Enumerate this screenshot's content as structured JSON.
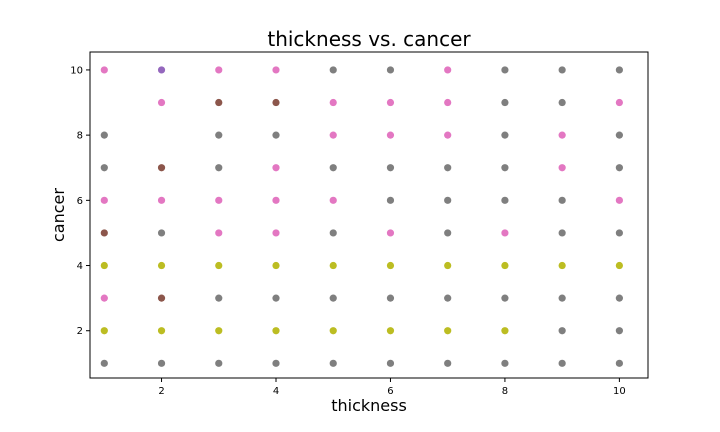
{
  "chart_data": {
    "type": "scatter",
    "title": "thickness vs. cancer",
    "xlabel": "thickness",
    "ylabel": "cancer",
    "xlim": [
      0.75,
      10.5
    ],
    "ylim": [
      0.55,
      10.55
    ],
    "xticks": [
      2,
      4,
      6,
      8,
      10
    ],
    "yticks": [
      2,
      4,
      6,
      8,
      10
    ],
    "grid": false,
    "colors": {
      "gray": "#7f7f7f",
      "olive": "#bcbd22",
      "pink": "#e377c2",
      "brown": "#8c564b",
      "purple": "#9467bd"
    },
    "points": [
      {
        "x": 1,
        "y": 1,
        "color": "gray"
      },
      {
        "x": 1,
        "y": 2,
        "color": "olive"
      },
      {
        "x": 1,
        "y": 3,
        "color": "pink"
      },
      {
        "x": 1,
        "y": 4,
        "color": "olive"
      },
      {
        "x": 1,
        "y": 5,
        "color": "brown"
      },
      {
        "x": 1,
        "y": 6,
        "color": "pink"
      },
      {
        "x": 1,
        "y": 7,
        "color": "gray"
      },
      {
        "x": 1,
        "y": 8,
        "color": "gray"
      },
      {
        "x": 1,
        "y": 10,
        "color": "pink"
      },
      {
        "x": 2,
        "y": 1,
        "color": "gray"
      },
      {
        "x": 2,
        "y": 2,
        "color": "olive"
      },
      {
        "x": 2,
        "y": 3,
        "color": "brown"
      },
      {
        "x": 2,
        "y": 4,
        "color": "olive"
      },
      {
        "x": 2,
        "y": 5,
        "color": "gray"
      },
      {
        "x": 2,
        "y": 6,
        "color": "pink"
      },
      {
        "x": 2,
        "y": 7,
        "color": "brown"
      },
      {
        "x": 2,
        "y": 9,
        "color": "pink"
      },
      {
        "x": 2,
        "y": 10,
        "color": "purple"
      },
      {
        "x": 3,
        "y": 1,
        "color": "gray"
      },
      {
        "x": 3,
        "y": 2,
        "color": "olive"
      },
      {
        "x": 3,
        "y": 3,
        "color": "gray"
      },
      {
        "x": 3,
        "y": 4,
        "color": "olive"
      },
      {
        "x": 3,
        "y": 5,
        "color": "pink"
      },
      {
        "x": 3,
        "y": 6,
        "color": "pink"
      },
      {
        "x": 3,
        "y": 7,
        "color": "gray"
      },
      {
        "x": 3,
        "y": 8,
        "color": "gray"
      },
      {
        "x": 3,
        "y": 9,
        "color": "brown"
      },
      {
        "x": 3,
        "y": 10,
        "color": "pink"
      },
      {
        "x": 4,
        "y": 1,
        "color": "gray"
      },
      {
        "x": 4,
        "y": 2,
        "color": "olive"
      },
      {
        "x": 4,
        "y": 3,
        "color": "gray"
      },
      {
        "x": 4,
        "y": 4,
        "color": "olive"
      },
      {
        "x": 4,
        "y": 5,
        "color": "pink"
      },
      {
        "x": 4,
        "y": 6,
        "color": "pink"
      },
      {
        "x": 4,
        "y": 7,
        "color": "pink"
      },
      {
        "x": 4,
        "y": 8,
        "color": "gray"
      },
      {
        "x": 4,
        "y": 9,
        "color": "brown"
      },
      {
        "x": 4,
        "y": 10,
        "color": "pink"
      },
      {
        "x": 5,
        "y": 1,
        "color": "gray"
      },
      {
        "x": 5,
        "y": 2,
        "color": "olive"
      },
      {
        "x": 5,
        "y": 3,
        "color": "gray"
      },
      {
        "x": 5,
        "y": 4,
        "color": "olive"
      },
      {
        "x": 5,
        "y": 5,
        "color": "gray"
      },
      {
        "x": 5,
        "y": 6,
        "color": "pink"
      },
      {
        "x": 5,
        "y": 7,
        "color": "gray"
      },
      {
        "x": 5,
        "y": 8,
        "color": "pink"
      },
      {
        "x": 5,
        "y": 9,
        "color": "pink"
      },
      {
        "x": 5,
        "y": 10,
        "color": "gray"
      },
      {
        "x": 6,
        "y": 1,
        "color": "gray"
      },
      {
        "x": 6,
        "y": 2,
        "color": "olive"
      },
      {
        "x": 6,
        "y": 3,
        "color": "gray"
      },
      {
        "x": 6,
        "y": 4,
        "color": "olive"
      },
      {
        "x": 6,
        "y": 5,
        "color": "pink"
      },
      {
        "x": 6,
        "y": 6,
        "color": "gray"
      },
      {
        "x": 6,
        "y": 7,
        "color": "gray"
      },
      {
        "x": 6,
        "y": 8,
        "color": "pink"
      },
      {
        "x": 6,
        "y": 9,
        "color": "pink"
      },
      {
        "x": 6,
        "y": 10,
        "color": "gray"
      },
      {
        "x": 7,
        "y": 1,
        "color": "gray"
      },
      {
        "x": 7,
        "y": 2,
        "color": "olive"
      },
      {
        "x": 7,
        "y": 3,
        "color": "gray"
      },
      {
        "x": 7,
        "y": 4,
        "color": "olive"
      },
      {
        "x": 7,
        "y": 5,
        "color": "gray"
      },
      {
        "x": 7,
        "y": 6,
        "color": "gray"
      },
      {
        "x": 7,
        "y": 7,
        "color": "gray"
      },
      {
        "x": 7,
        "y": 8,
        "color": "pink"
      },
      {
        "x": 7,
        "y": 9,
        "color": "pink"
      },
      {
        "x": 7,
        "y": 10,
        "color": "pink"
      },
      {
        "x": 8,
        "y": 1,
        "color": "gray"
      },
      {
        "x": 8,
        "y": 2,
        "color": "olive"
      },
      {
        "x": 8,
        "y": 3,
        "color": "gray"
      },
      {
        "x": 8,
        "y": 4,
        "color": "olive"
      },
      {
        "x": 8,
        "y": 5,
        "color": "pink"
      },
      {
        "x": 8,
        "y": 6,
        "color": "gray"
      },
      {
        "x": 8,
        "y": 7,
        "color": "gray"
      },
      {
        "x": 8,
        "y": 8,
        "color": "gray"
      },
      {
        "x": 8,
        "y": 9,
        "color": "gray"
      },
      {
        "x": 8,
        "y": 10,
        "color": "gray"
      },
      {
        "x": 9,
        "y": 1,
        "color": "gray"
      },
      {
        "x": 9,
        "y": 2,
        "color": "gray"
      },
      {
        "x": 9,
        "y": 3,
        "color": "gray"
      },
      {
        "x": 9,
        "y": 4,
        "color": "olive"
      },
      {
        "x": 9,
        "y": 5,
        "color": "gray"
      },
      {
        "x": 9,
        "y": 6,
        "color": "gray"
      },
      {
        "x": 9,
        "y": 7,
        "color": "pink"
      },
      {
        "x": 9,
        "y": 8,
        "color": "pink"
      },
      {
        "x": 9,
        "y": 9,
        "color": "gray"
      },
      {
        "x": 9,
        "y": 10,
        "color": "gray"
      },
      {
        "x": 10,
        "y": 1,
        "color": "gray"
      },
      {
        "x": 10,
        "y": 2,
        "color": "gray"
      },
      {
        "x": 10,
        "y": 3,
        "color": "gray"
      },
      {
        "x": 10,
        "y": 4,
        "color": "olive"
      },
      {
        "x": 10,
        "y": 5,
        "color": "gray"
      },
      {
        "x": 10,
        "y": 6,
        "color": "pink"
      },
      {
        "x": 10,
        "y": 7,
        "color": "gray"
      },
      {
        "x": 10,
        "y": 8,
        "color": "gray"
      },
      {
        "x": 10,
        "y": 9,
        "color": "pink"
      },
      {
        "x": 10,
        "y": 10,
        "color": "gray"
      }
    ]
  }
}
